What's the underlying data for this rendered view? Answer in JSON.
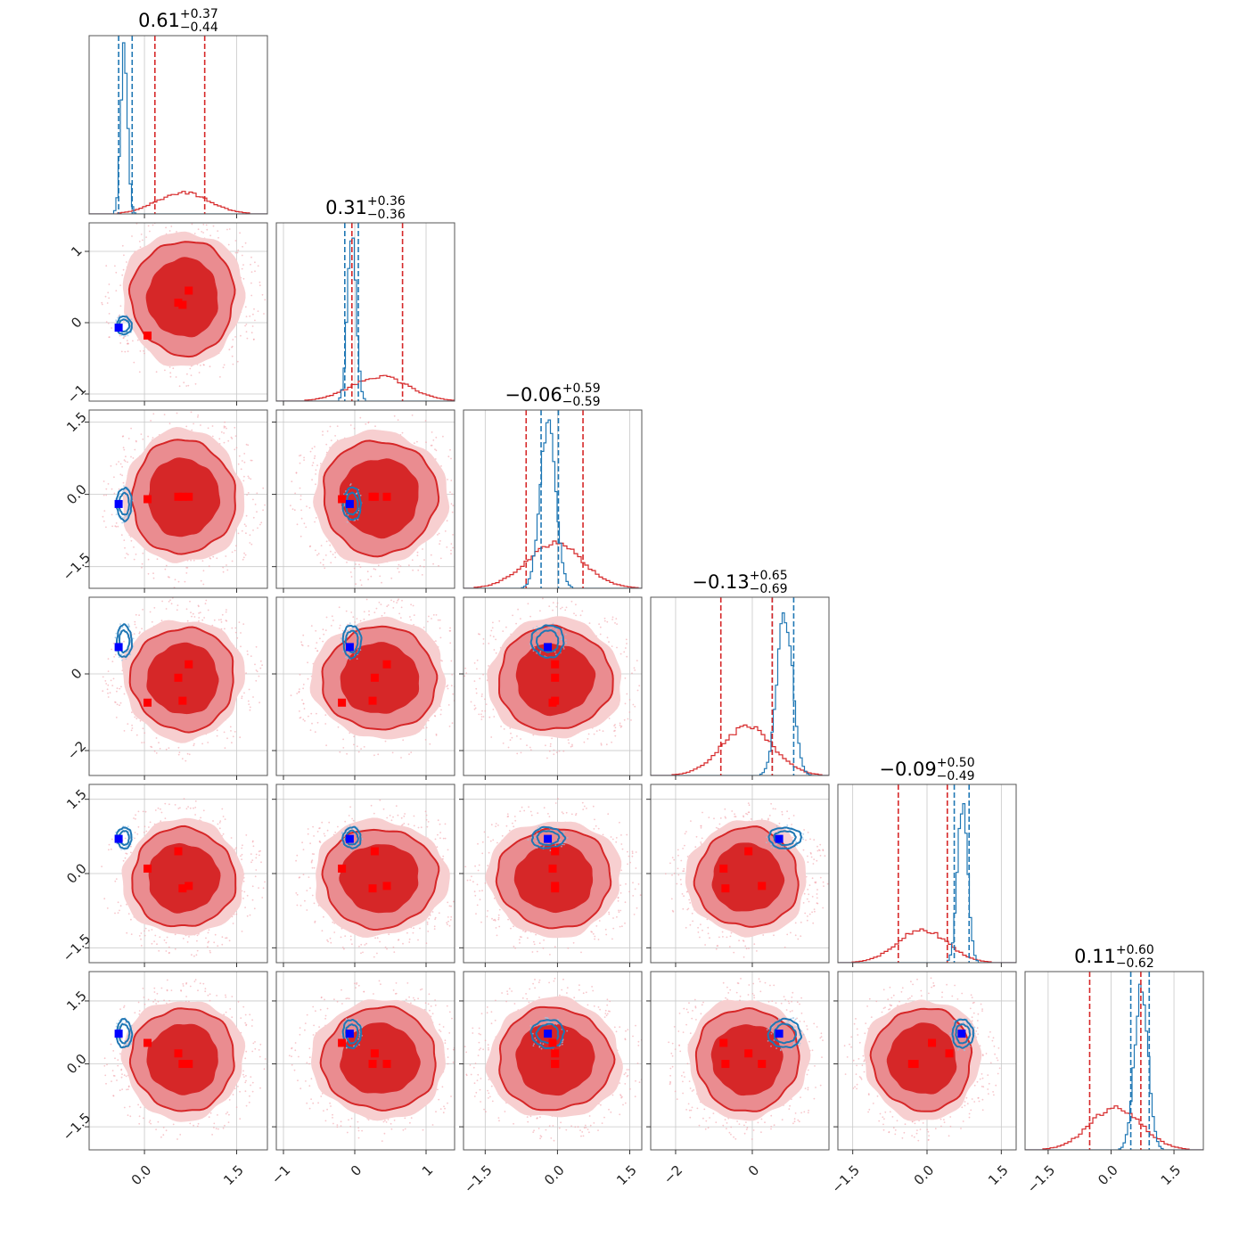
{
  "chart_data": {
    "type": "corner",
    "grid": true,
    "colors": {
      "population_red": "#d62728",
      "population_blue": "#1f77b4",
      "marker_red": "#ff0000",
      "marker_blue": "#0000ff"
    },
    "parameters": [
      {
        "title": {
          "median": "0.61",
          "plus": "+0.37",
          "minus": "−0.44"
        },
        "range": [
          -0.9,
          2.0
        ],
        "ticks": [
          0.0,
          1.5
        ],
        "tick_labels": [
          "0.0",
          "1.5"
        ],
        "blue_mean": -0.33,
        "blue_sd": 0.055,
        "red_mean": 0.63,
        "red_sd": 0.42,
        "red_quantiles": [
          0.17,
          0.98
        ],
        "blue_quantiles": [
          -0.42,
          -0.2
        ]
      },
      {
        "title": {
          "median": "0.31",
          "plus": "+0.36",
          "minus": "−0.36"
        },
        "range": [
          -1.1,
          1.4
        ],
        "ticks": [
          -1,
          0,
          1
        ],
        "tick_labels": [
          "−1",
          "0",
          "1"
        ],
        "blue_mean": -0.04,
        "blue_sd": 0.06,
        "red_mean": 0.35,
        "red_sd": 0.4,
        "red_quantiles": [
          -0.04,
          0.67
        ],
        "blue_quantiles": [
          -0.14,
          0.05
        ]
      },
      {
        "title": {
          "median": "−0.06",
          "plus": "+0.59",
          "minus": "−0.59"
        },
        "range": [
          -1.95,
          1.75
        ],
        "ticks": [
          -1.5,
          0.0,
          1.5
        ],
        "tick_labels": [
          "−1.5",
          "0.0",
          "1.5"
        ],
        "blue_mean": -0.2,
        "blue_sd": 0.16,
        "red_mean": -0.06,
        "red_sd": 0.59,
        "red_quantiles": [
          -0.65,
          0.53
        ],
        "blue_quantiles": [
          -0.34,
          0.02
        ]
      },
      {
        "title": {
          "median": "−0.13",
          "plus": "+0.65",
          "minus": "−0.69"
        },
        "range": [
          -2.65,
          2.0
        ],
        "ticks": [
          -2,
          0
        ],
        "tick_labels": [
          "−2",
          "0"
        ],
        "blue_mean": 0.85,
        "blue_sd": 0.2,
        "red_mean": -0.13,
        "red_sd": 0.67,
        "red_quantiles": [
          -0.82,
          0.52
        ],
        "blue_quantiles": [
          0.52,
          1.08
        ]
      },
      {
        "title": {
          "median": "−0.09",
          "plus": "+0.50",
          "minus": "−0.49"
        },
        "range": [
          -1.8,
          1.8
        ],
        "ticks": [
          -1.5,
          0.0,
          1.5
        ],
        "tick_labels": [
          "−1.5",
          "0.0",
          "1.5"
        ],
        "blue_mean": 0.72,
        "blue_sd": 0.1,
        "red_mean": -0.09,
        "red_sd": 0.5,
        "red_quantiles": [
          -0.58,
          0.41
        ],
        "blue_quantiles": [
          0.55,
          0.85
        ]
      },
      {
        "title": {
          "median": "0.11",
          "plus": "+0.60",
          "minus": "−0.62"
        },
        "range": [
          -2.05,
          2.2
        ],
        "ticks": [
          -1.5,
          0.0,
          1.5
        ],
        "tick_labels": [
          "−1.5",
          "0.0",
          "1.5"
        ],
        "blue_mean": 0.72,
        "blue_sd": 0.16,
        "red_mean": 0.11,
        "red_sd": 0.61,
        "red_quantiles": [
          -0.51,
          0.71
        ],
        "blue_quantiles": [
          0.47,
          0.91
        ]
      }
    ],
    "markers": {
      "blue": [
        -0.42,
        -0.07,
        -0.2,
        0.7,
        0.7,
        0.72
      ],
      "red": [
        [
          0.05,
          -0.18,
          -0.1,
          -0.75,
          0.1,
          0.5
        ],
        [
          0.55,
          0.28,
          -0.05,
          -0.1,
          0.45,
          0.25
        ],
        [
          0.62,
          0.25,
          -0.05,
          -0.7,
          -0.3,
          0.0
        ],
        [
          0.72,
          0.45,
          -0.05,
          0.25,
          -0.25,
          0.0
        ]
      ]
    }
  }
}
